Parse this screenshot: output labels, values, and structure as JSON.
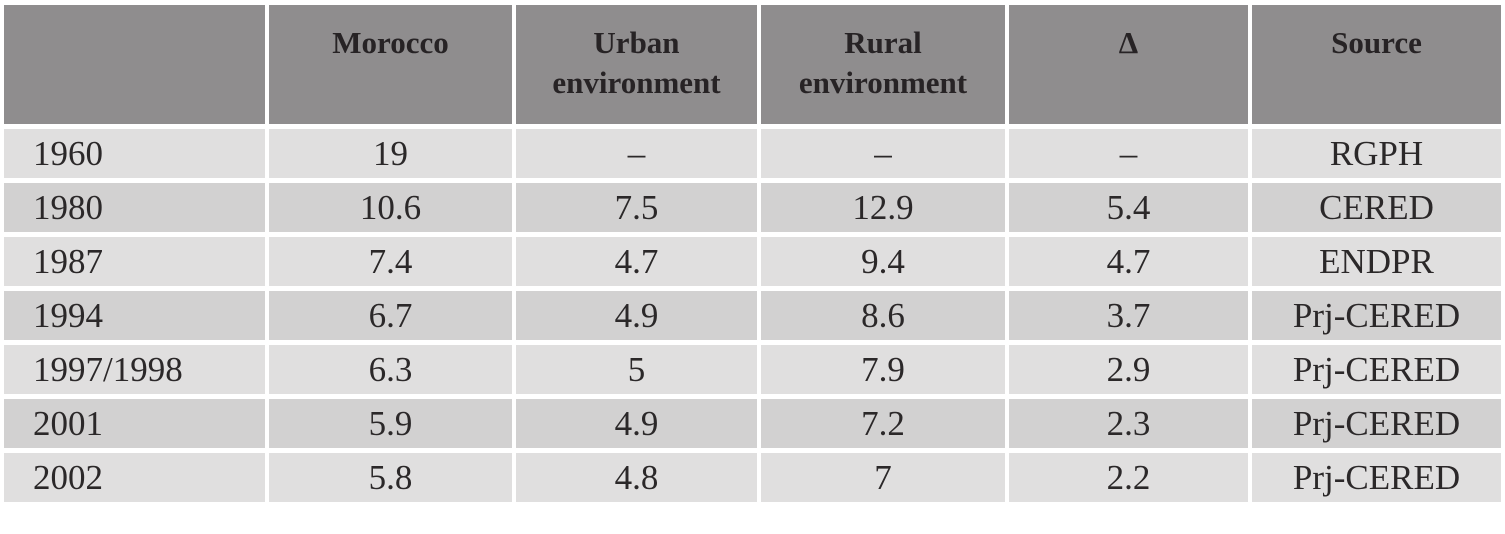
{
  "chart_data": {
    "type": "table",
    "title": "",
    "columns": [
      "",
      "Morocco",
      "Urban environment",
      "Rural environment",
      "Δ",
      "Source"
    ],
    "rows": [
      [
        "1960",
        "19",
        "–",
        "–",
        "–",
        "RGPH"
      ],
      [
        "1980",
        "10.6",
        "7.5",
        "12.9",
        "5.4",
        "CERED"
      ],
      [
        "1987",
        "7.4",
        "4.7",
        "9.4",
        "4.7",
        "ENDPR"
      ],
      [
        "1994",
        "6.7",
        "4.9",
        "8.6",
        "3.7",
        "Prj-CERED"
      ],
      [
        "1997/1998",
        "6.3",
        "5",
        "7.9",
        "2.9",
        "Prj-CERED"
      ],
      [
        "2001",
        "5.9",
        "4.9",
        "7.2",
        "2.3",
        "Prj-CERED"
      ],
      [
        "2002",
        "5.8",
        "4.8",
        "7",
        "2.2",
        "Prj-CERED"
      ]
    ],
    "layout": {
      "header_align": "center-top",
      "year_column_align": "left",
      "value_align": "center",
      "row_striping": "light-dark-alternating",
      "grid": "white-gaps-between-cells"
    }
  },
  "colors": {
    "header_bg": "#8F8D8E",
    "header_text": "#272325",
    "row_light_bg": "#E0DFDF",
    "row_dark_bg": "#D2D1D1",
    "body_text": "#2B2829",
    "gap": "#FFFFFF"
  }
}
